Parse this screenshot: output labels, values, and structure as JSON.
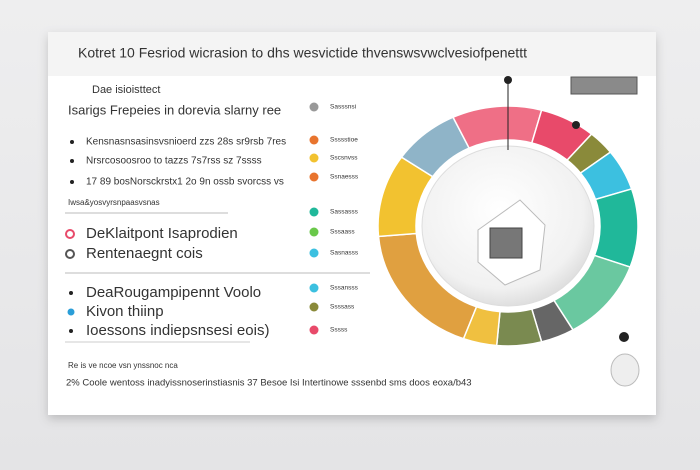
{
  "header": {
    "title": "Kotret 10 Fesriod wicrasion to dhs wesvictide thvenswsvwclvesiofpenettt"
  },
  "section1": {
    "title": "Dae isioisttect",
    "subtitle": "Isarigs Frepeies in dorevia slarny ree",
    "bullets": [
      "Kensnasnsasinsvsnioerd zzs 28s sr9rsb 7res",
      "Nrsrcosoosroo to tazzs 7s7rss sz 7ssss",
      "17 89 bosNorsckrstx1 2o 9n ossb svorcss vs"
    ],
    "note": "Iwsa&yosvyrsnpaasvsnas"
  },
  "section2": {
    "items": [
      "DeKlaitpont Isaprodien",
      "Rentenaegnt cois"
    ]
  },
  "section3": {
    "items": [
      "DeaRougampipennt Voolo",
      "Kivon thiinp",
      "Ioessons indiepsnsesi eois)"
    ]
  },
  "legend": [
    "Sasssnsi",
    "Ssssstioe",
    "Sscsnvss",
    "Ssnaesss",
    "Sassasss",
    "Sssaass",
    "Sasnasss",
    "Sssansss",
    "Ssssass",
    "Sssss"
  ],
  "footer": {
    "note": "Re is ve ncoe vsn ynssnoc nca",
    "text": "2% Coole wentoss inadyissnoserinstiasnis 37 Besoe Isi Intertinowe sssenbd sms doos eoxa/b43"
  }
}
